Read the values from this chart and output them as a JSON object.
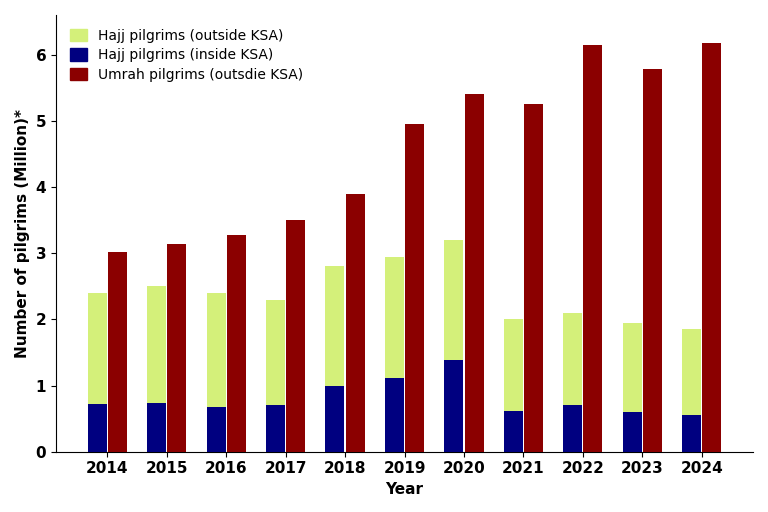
{
  "years": [
    2014,
    2015,
    2016,
    2017,
    2018,
    2019,
    2020,
    2021,
    2022,
    2023,
    2024
  ],
  "hajj_outside": [
    2.4,
    2.5,
    2.4,
    2.3,
    2.8,
    2.95,
    3.2,
    2.0,
    2.1,
    1.95,
    1.85
  ],
  "hajj_inside": [
    0.72,
    0.74,
    0.68,
    0.7,
    1.0,
    1.12,
    1.38,
    0.62,
    0.7,
    0.6,
    0.55
  ],
  "umrah_outside": [
    3.02,
    3.14,
    3.28,
    3.5,
    3.9,
    4.96,
    5.4,
    5.25,
    6.15,
    5.78,
    6.18
  ],
  "color_hajj_outside": "#d4f07a",
  "color_hajj_inside": "#000080",
  "color_umrah_outside": "#8B0000",
  "ylabel": "Number of pilgrims (Million)*",
  "xlabel": "Year",
  "ylim": [
    0,
    6.6
  ],
  "yticks": [
    0,
    1,
    2,
    3,
    4,
    5,
    6
  ],
  "legend_labels": [
    "Hajj pilgrims (outside KSA)",
    "Hajj pilgrims (inside KSA)",
    "Umrah pilgrims (outsdie KSA)"
  ],
  "bar_width": 0.32,
  "bar_gap": 0.02,
  "title": ""
}
